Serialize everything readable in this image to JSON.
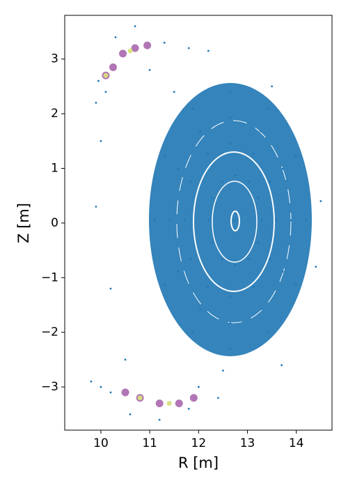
{
  "chart_data": {
    "type": "scatter",
    "xlabel": "R [m]",
    "ylabel": "Z [m]",
    "xlim": [
      9.26,
      14.73
    ],
    "ylim": [
      -3.79,
      3.8
    ],
    "xticks": [
      10,
      11,
      12,
      13,
      14
    ],
    "yticks": [
      {
        "value": -3,
        "label": "−3"
      },
      {
        "value": -2,
        "label": "−2"
      },
      {
        "value": -1,
        "label": "−1"
      },
      0,
      1,
      2,
      3
    ],
    "series": [
      {
        "color": "#1f77b4",
        "x": [
          14.2,
          13.99,
          13.43,
          12.65,
          11.88,
          11.31,
          11.1,
          11.31,
          11.88,
          12.65,
          13.43,
          13.99,
          13.89,
          13.72,
          13.27,
          12.65,
          12.03,
          11.58,
          11.41,
          11.58,
          12.03,
          12.65,
          13.27,
          13.72,
          13.58,
          13.46,
          13.12,
          12.65,
          12.19,
          11.84,
          11.72,
          11.84,
          12.19,
          12.65,
          13.12,
          13.46,
          13.29,
          13.22,
          13.02,
          12.75,
          12.48,
          12.28,
          12.21,
          12.28,
          12.48,
          12.75,
          13.02,
          13.22,
          10.0,
          10.2,
          9.9,
          14.5,
          14.4,
          11.5,
          13.5,
          12.5,
          10.5,
          11.0,
          13.7,
          12.75,
          9.95,
          10.1,
          10.3,
          10.7,
          11.3,
          11.8,
          12.2,
          9.9,
          9.8,
          10.2,
          10.6,
          11.2,
          11.8,
          12.4,
          10.0,
          12.0
        ],
        "y": [
          0.05,
          1.23,
          2.09,
          2.4,
          2.09,
          1.23,
          0.05,
          -1.13,
          -1.99,
          -2.3,
          -1.99,
          -1.13,
          0.05,
          0.99,
          1.68,
          1.93,
          1.68,
          0.99,
          0.05,
          -0.89,
          -1.58,
          -1.83,
          -1.58,
          -0.89,
          0.05,
          0.76,
          1.27,
          1.46,
          1.27,
          0.76,
          0.05,
          -0.66,
          -1.17,
          -1.36,
          -1.17,
          -0.66,
          0.05,
          0.46,
          0.76,
          0.87,
          0.76,
          0.46,
          0.05,
          -0.36,
          -0.66,
          -0.77,
          -0.66,
          -0.36,
          1.5,
          -1.2,
          0.3,
          0.4,
          -0.8,
          2.4,
          2.5,
          -2.7,
          -2.5,
          2.8,
          -2.6,
          0.05,
          2.6,
          2.4,
          3.4,
          3.6,
          3.3,
          3.2,
          3.15,
          2.2,
          -2.9,
          -3.1,
          -3.5,
          -3.6,
          -3.4,
          -3.2,
          -3.0,
          -3.0
        ]
      },
      {
        "color": "#a25ea8",
        "x": [
          10.1,
          10.25,
          10.45,
          10.7,
          10.95,
          10.5,
          10.8,
          11.2,
          11.6,
          11.9
        ],
        "y": [
          2.7,
          2.85,
          3.1,
          3.2,
          3.25,
          -3.1,
          -3.2,
          -3.3,
          -3.3,
          -3.2
        ]
      },
      {
        "color": "#d8e07a",
        "x": [
          10.1,
          10.6,
          10.8,
          11.4
        ],
        "y": [
          2.7,
          3.15,
          -3.2,
          -3.3
        ]
      }
    ]
  }
}
